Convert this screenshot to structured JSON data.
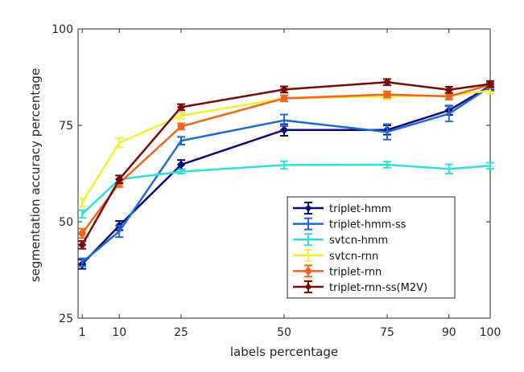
{
  "chart_data": {
    "type": "line",
    "title": "",
    "xlabel": "labels percentage",
    "ylabel": "segmentation accuracy percentage",
    "x": [
      1,
      10,
      25,
      50,
      75,
      90,
      100
    ],
    "x_ticks": [
      "1",
      "10",
      "25",
      "50",
      "75",
      "90",
      "100"
    ],
    "y_ticks": [
      "25",
      "50",
      "75",
      "100"
    ],
    "xlim": [
      0,
      100
    ],
    "ylim": [
      25,
      100
    ],
    "grid": false,
    "legend_position": "bottom-right",
    "series": [
      {
        "name": "triplet-hmm",
        "color": "#0a0a78",
        "marker": "diamond",
        "values": [
          39.0,
          49.0,
          64.8,
          73.8,
          73.8,
          78.9,
          85.2
        ],
        "errors": [
          1.2,
          1.2,
          1.2,
          1.5,
          1.2,
          1.2,
          1.0
        ]
      },
      {
        "name": "triplet-hmm-ss",
        "color": "#1a6ad8",
        "marker": "none",
        "values": [
          39.5,
          47.5,
          71.0,
          76.3,
          73.3,
          78.0,
          85.0
        ],
        "errors": [
          1.0,
          1.5,
          1.0,
          1.5,
          2.0,
          2.0,
          1.0
        ]
      },
      {
        "name": "svtcn-hmm",
        "color": "#2ee0d6",
        "marker": "none",
        "values": [
          52.0,
          61.0,
          63.0,
          64.7,
          64.8,
          63.7,
          64.5
        ],
        "errors": [
          1.0,
          1.0,
          0.5,
          1.0,
          0.8,
          1.2,
          0.8
        ]
      },
      {
        "name": "svtcn-rnn",
        "color": "#f2f032",
        "marker": "none",
        "values": [
          55.0,
          70.5,
          77.5,
          82.0,
          82.5,
          82.7,
          84.0
        ],
        "errors": [
          1.0,
          1.2,
          0.8,
          0.8,
          0.8,
          0.8,
          0.8
        ]
      },
      {
        "name": "triplet-rnn",
        "color": "#f0641e",
        "marker": "circle",
        "values": [
          47.0,
          60.0,
          74.7,
          82.0,
          83.0,
          82.5,
          85.5
        ],
        "errors": [
          1.2,
          1.0,
          0.8,
          0.8,
          0.8,
          0.8,
          0.8
        ]
      },
      {
        "name": "triplet-rnn-ss(M2V)",
        "color": "#7a0a0a",
        "marker": "diamond",
        "values": [
          44.0,
          61.0,
          79.7,
          84.3,
          86.2,
          84.2,
          85.7
        ],
        "errors": [
          1.0,
          1.0,
          0.8,
          0.8,
          0.8,
          0.8,
          0.8
        ]
      }
    ]
  }
}
